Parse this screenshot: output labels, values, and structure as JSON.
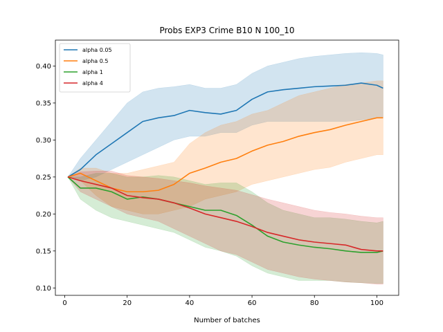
{
  "chart_data": {
    "type": "line",
    "title": "Probs EXP3 Crime B10 N 100_10",
    "xlabel": "Number of batches",
    "ylabel": "",
    "xlim": [
      -3,
      107
    ],
    "ylim": [
      0.09,
      0.435
    ],
    "xticks": [
      0,
      20,
      40,
      60,
      80,
      100
    ],
    "yticks": [
      0.1,
      0.15,
      0.2,
      0.25,
      0.3,
      0.35,
      0.4
    ],
    "xtick_labels": [
      "0",
      "20",
      "40",
      "60",
      "80",
      "100"
    ],
    "ytick_labels": [
      "0.10",
      "0.15",
      "0.20",
      "0.25",
      "0.30",
      "0.35",
      "0.40"
    ],
    "grid": false,
    "legend_position": "top-left",
    "band_opacity": 0.2,
    "series": [
      {
        "name": "alpha 0.05",
        "color": "#1f77b4",
        "x": [
          1,
          5,
          10,
          15,
          20,
          25,
          30,
          35,
          40,
          45,
          50,
          55,
          60,
          65,
          70,
          75,
          80,
          85,
          90,
          95,
          100,
          102
        ],
        "y": [
          0.25,
          0.26,
          0.28,
          0.295,
          0.31,
          0.325,
          0.33,
          0.333,
          0.34,
          0.337,
          0.335,
          0.34,
          0.355,
          0.365,
          0.368,
          0.37,
          0.372,
          0.373,
          0.374,
          0.377,
          0.374,
          0.37
        ],
        "lower": [
          0.25,
          0.245,
          0.25,
          0.26,
          0.27,
          0.28,
          0.29,
          0.3,
          0.305,
          0.305,
          0.31,
          0.31,
          0.32,
          0.325,
          0.325,
          0.325,
          0.325,
          0.325,
          0.325,
          0.327,
          0.33,
          0.33
        ],
        "upper": [
          0.25,
          0.275,
          0.3,
          0.325,
          0.35,
          0.365,
          0.37,
          0.372,
          0.375,
          0.37,
          0.37,
          0.375,
          0.39,
          0.4,
          0.405,
          0.41,
          0.413,
          0.415,
          0.417,
          0.418,
          0.417,
          0.415
        ]
      },
      {
        "name": "alpha 0.5",
        "color": "#ff7f0e",
        "x": [
          1,
          5,
          10,
          15,
          20,
          25,
          30,
          35,
          40,
          45,
          50,
          55,
          60,
          65,
          70,
          75,
          80,
          85,
          90,
          95,
          100,
          102
        ],
        "y": [
          0.25,
          0.255,
          0.245,
          0.235,
          0.23,
          0.23,
          0.232,
          0.24,
          0.255,
          0.262,
          0.27,
          0.275,
          0.285,
          0.293,
          0.298,
          0.305,
          0.31,
          0.314,
          0.32,
          0.325,
          0.33,
          0.33
        ],
        "lower": [
          0.25,
          0.245,
          0.225,
          0.21,
          0.205,
          0.2,
          0.2,
          0.205,
          0.21,
          0.22,
          0.225,
          0.23,
          0.24,
          0.245,
          0.25,
          0.255,
          0.26,
          0.263,
          0.27,
          0.275,
          0.28,
          0.28
        ],
        "upper": [
          0.25,
          0.262,
          0.262,
          0.255,
          0.255,
          0.26,
          0.265,
          0.27,
          0.295,
          0.31,
          0.32,
          0.325,
          0.335,
          0.34,
          0.35,
          0.36,
          0.365,
          0.37,
          0.375,
          0.377,
          0.38,
          0.38
        ]
      },
      {
        "name": "alpha 1",
        "color": "#2ca02c",
        "x": [
          1,
          5,
          10,
          15,
          20,
          25,
          30,
          35,
          40,
          45,
          50,
          55,
          60,
          65,
          70,
          75,
          80,
          85,
          90,
          95,
          100,
          102
        ],
        "y": [
          0.25,
          0.235,
          0.235,
          0.23,
          0.22,
          0.223,
          0.22,
          0.215,
          0.21,
          0.205,
          0.205,
          0.198,
          0.185,
          0.17,
          0.162,
          0.158,
          0.155,
          0.153,
          0.15,
          0.148,
          0.148,
          0.15
        ],
        "lower": [
          0.25,
          0.22,
          0.205,
          0.195,
          0.19,
          0.185,
          0.18,
          0.175,
          0.165,
          0.155,
          0.15,
          0.143,
          0.13,
          0.12,
          0.115,
          0.11,
          0.11,
          0.11,
          0.108,
          0.107,
          0.106,
          0.106
        ],
        "upper": [
          0.25,
          0.25,
          0.255,
          0.255,
          0.25,
          0.25,
          0.252,
          0.25,
          0.245,
          0.24,
          0.242,
          0.242,
          0.23,
          0.215,
          0.205,
          0.2,
          0.195,
          0.195,
          0.193,
          0.19,
          0.188,
          0.19
        ]
      },
      {
        "name": "alpha 4",
        "color": "#d62728",
        "x": [
          1,
          5,
          10,
          15,
          20,
          25,
          30,
          35,
          40,
          45,
          50,
          55,
          60,
          65,
          70,
          75,
          80,
          85,
          90,
          95,
          100,
          102
        ],
        "y": [
          0.25,
          0.245,
          0.24,
          0.235,
          0.225,
          0.222,
          0.22,
          0.215,
          0.208,
          0.2,
          0.195,
          0.19,
          0.183,
          0.175,
          0.17,
          0.165,
          0.162,
          0.16,
          0.158,
          0.152,
          0.15,
          0.15
        ],
        "lower": [
          0.25,
          0.23,
          0.22,
          0.21,
          0.2,
          0.195,
          0.19,
          0.18,
          0.17,
          0.16,
          0.15,
          0.145,
          0.135,
          0.125,
          0.12,
          0.115,
          0.112,
          0.11,
          0.108,
          0.107,
          0.105,
          0.105
        ],
        "upper": [
          0.25,
          0.257,
          0.258,
          0.258,
          0.252,
          0.25,
          0.248,
          0.245,
          0.242,
          0.238,
          0.235,
          0.232,
          0.226,
          0.22,
          0.215,
          0.21,
          0.205,
          0.202,
          0.2,
          0.197,
          0.195,
          0.195
        ]
      }
    ]
  }
}
